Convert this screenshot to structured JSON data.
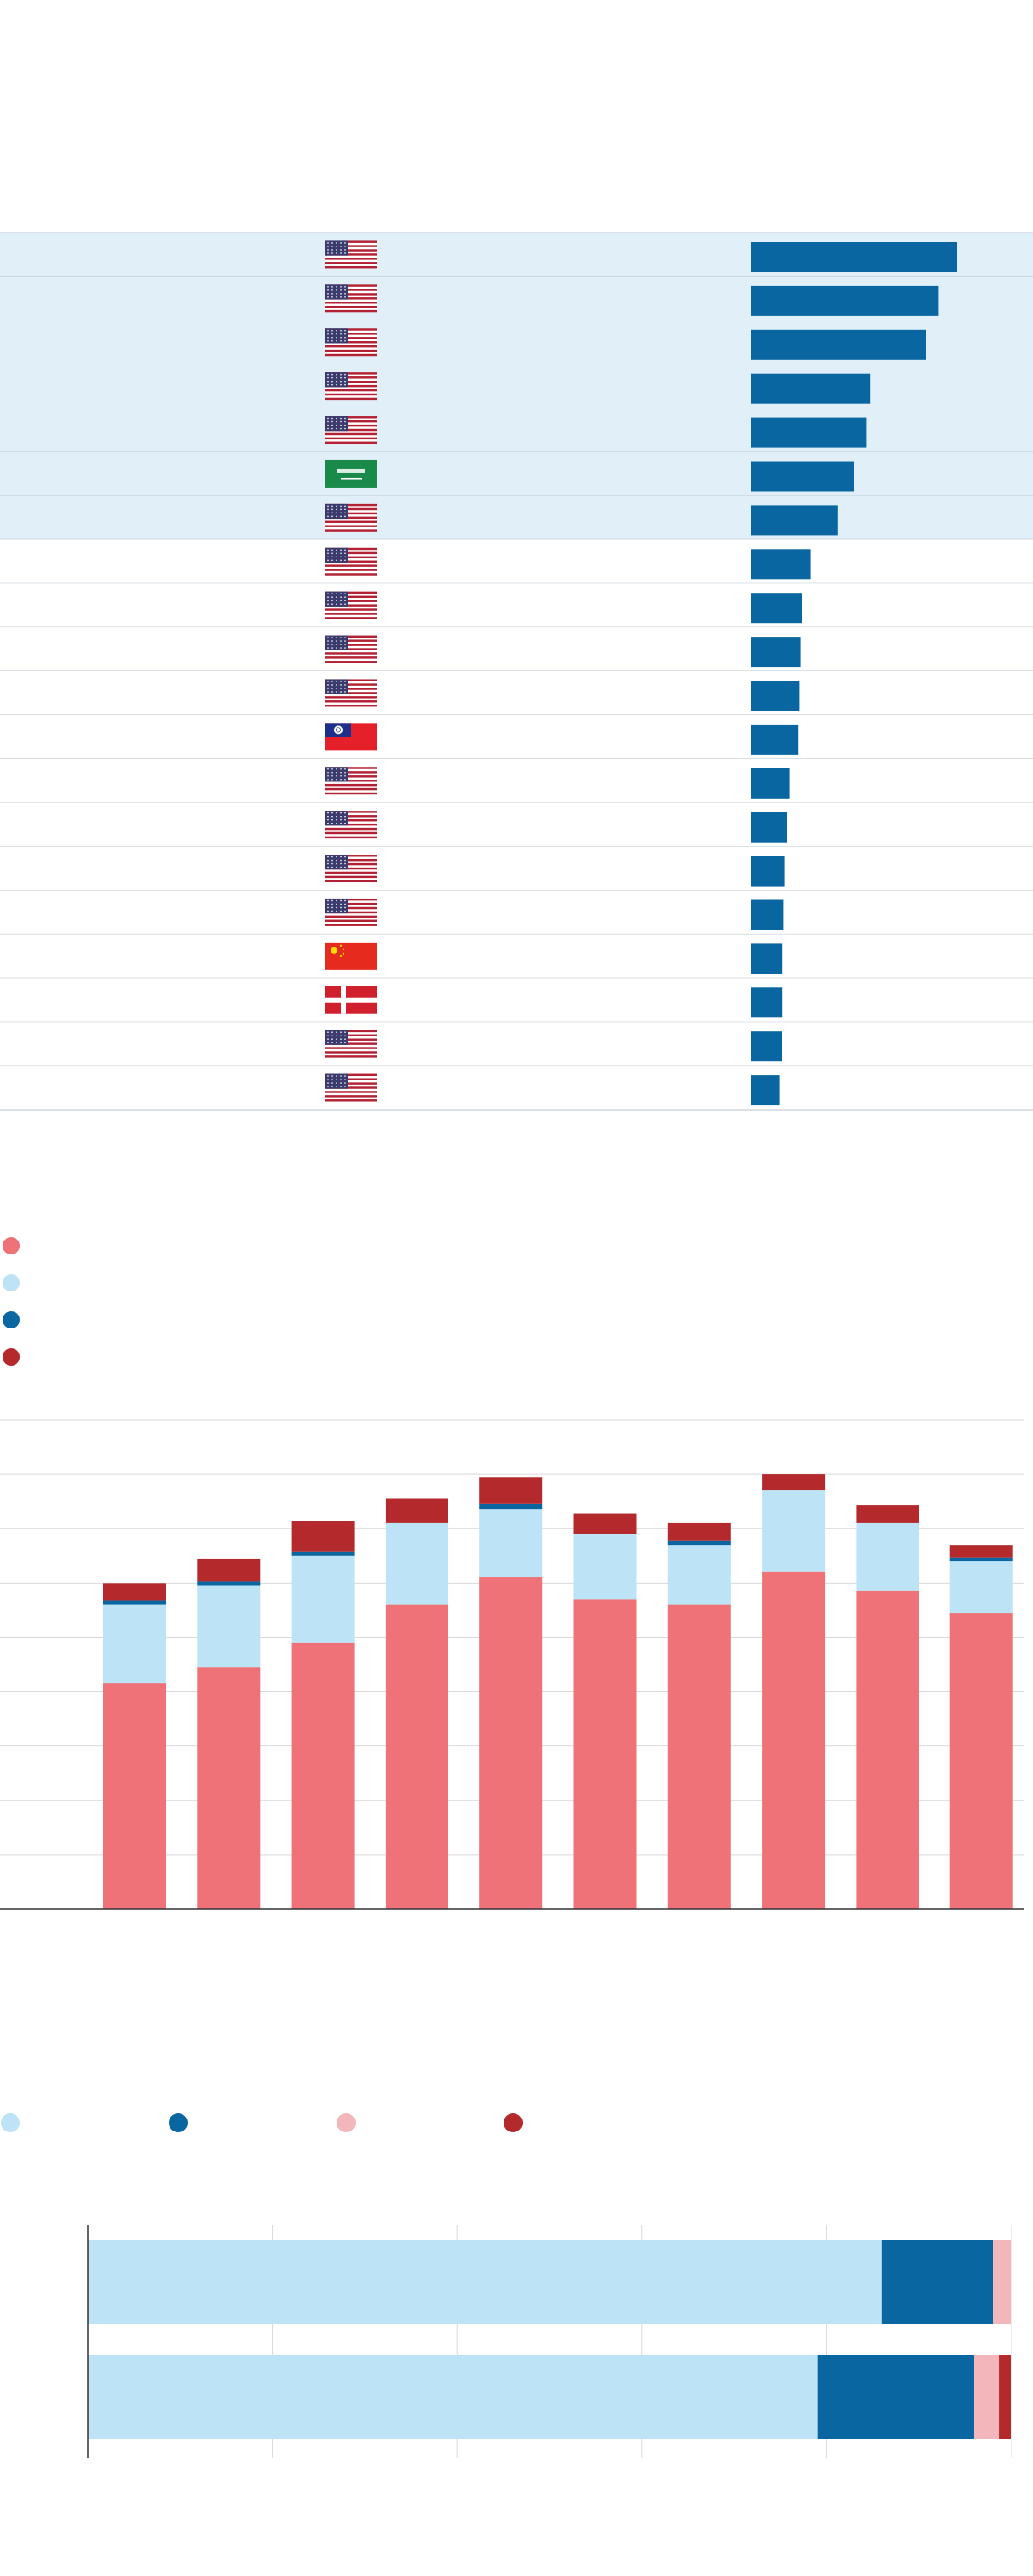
{
  "colors": {
    "row_highlight": "#e1f0f8",
    "row_line": "#b7c3cc",
    "bar_blue": "#0a66a0",
    "stack_colors": [
      "#ee7277",
      "#bde3f6",
      "#0a66a0",
      "#b42a2c"
    ],
    "hbar_colors": [
      "#bde3f6",
      "#0a66a0",
      "#f3b6ba",
      "#b42a2c"
    ]
  },
  "chart_data": [
    {
      "type": "table",
      "rows": [
        {
          "flag": "us-flag-icon",
          "value": 100,
          "highlight": true
        },
        {
          "flag": "us-flag-icon",
          "value": 91,
          "highlight": true
        },
        {
          "flag": "us-flag-icon",
          "value": 85,
          "highlight": true
        },
        {
          "flag": "us-flag-icon",
          "value": 58,
          "highlight": true
        },
        {
          "flag": "us-flag-icon",
          "value": 56,
          "highlight": true
        },
        {
          "flag": "saudi-flag-icon",
          "value": 50,
          "highlight": true
        },
        {
          "flag": "us-flag-icon",
          "value": 42,
          "highlight": true
        },
        {
          "flag": "us-flag-icon",
          "value": 29,
          "highlight": false
        },
        {
          "flag": "us-flag-icon",
          "value": 25,
          "highlight": false
        },
        {
          "flag": "us-flag-icon",
          "value": 24,
          "highlight": false
        },
        {
          "flag": "us-flag-icon",
          "value": 23.5,
          "highlight": false
        },
        {
          "flag": "taiwan-flag-icon",
          "value": 23,
          "highlight": false
        },
        {
          "flag": "us-flag-icon",
          "value": 19,
          "highlight": false
        },
        {
          "flag": "us-flag-icon",
          "value": 17.5,
          "highlight": false
        },
        {
          "flag": "us-flag-icon",
          "value": 16.5,
          "highlight": false
        },
        {
          "flag": "us-flag-icon",
          "value": 16,
          "highlight": false
        },
        {
          "flag": "china-flag-icon",
          "value": 15.5,
          "highlight": false
        },
        {
          "flag": "denmark-flag-icon",
          "value": 15.5,
          "highlight": false
        },
        {
          "flag": "us-flag-icon",
          "value": 15,
          "highlight": false
        },
        {
          "flag": "us-flag-icon",
          "value": 14,
          "highlight": false
        }
      ]
    },
    {
      "type": "bar",
      "stacked": true,
      "categories": [
        "",
        "",
        "",
        "",
        "",
        "",
        "",
        "",
        "",
        ""
      ],
      "series": [
        {
          "values": [
            4.15,
            4.45,
            4.9,
            5.6,
            6.1,
            5.7,
            5.6,
            6.2,
            5.85,
            5.45
          ]
        },
        {
          "values": [
            1.45,
            1.5,
            1.6,
            1.5,
            1.25,
            1.2,
            1.1,
            1.5,
            1.25,
            0.95
          ]
        },
        {
          "values": [
            0.08,
            0.08,
            0.08,
            0.0,
            0.1,
            0.0,
            0.07,
            0.0,
            0.0,
            0.07
          ]
        },
        {
          "values": [
            0.32,
            0.42,
            0.55,
            0.45,
            0.5,
            0.38,
            0.33,
            0.3,
            0.33,
            0.23
          ]
        }
      ],
      "ylim": [
        0,
        9
      ],
      "grid": true,
      "legend": "top-left"
    },
    {
      "type": "bar",
      "orientation": "horizontal",
      "stacked": true,
      "categories": [
        "",
        ""
      ],
      "series": [
        {
          "values": [
            86,
            79
          ]
        },
        {
          "values": [
            12,
            17
          ]
        },
        {
          "values": [
            2,
            2.7
          ]
        },
        {
          "values": [
            0,
            1.3
          ]
        }
      ],
      "xlim": [
        0,
        100
      ],
      "grid": true,
      "legend": "top"
    }
  ]
}
